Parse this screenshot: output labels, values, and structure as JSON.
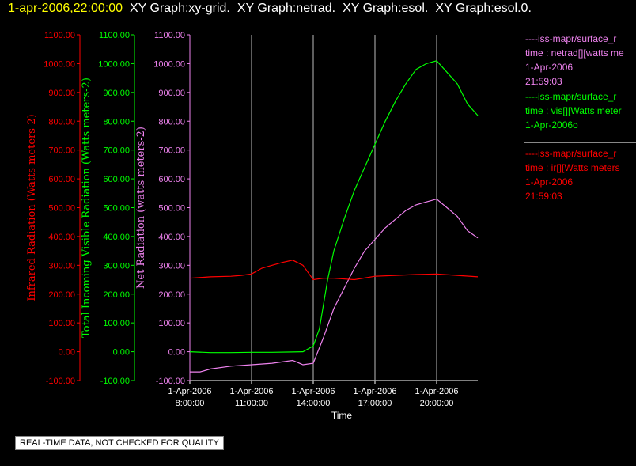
{
  "header": {
    "timestamp": "1-apr-2006,22:00:00",
    "graphs": [
      "XY Graph:xy-grid.",
      "XY Graph:netrad.",
      "XY Graph:esol.",
      "XY Graph:esol.0."
    ]
  },
  "legend": [
    {
      "line1": "----iss-mapr/surface_r",
      "line2": "time : netrad[][watts me",
      "line3": "1-Apr-2006",
      "line4": "21:59:03",
      "color": "#ee82ee"
    },
    {
      "line1": "----iss-mapr/surface_r",
      "line2": "time : vis[][Watts meter",
      "line3": "1-Apr-2006o",
      "line4": "",
      "color": "#00ff00"
    },
    {
      "line1": "----iss-mapr/surface_r",
      "line2": "time : ir[][Watts meters",
      "line3": "1-Apr-2006",
      "line4": "21:59:03",
      "color": "#ff0000"
    }
  ],
  "notice": "REAL-TIME DATA, NOT CHECKED FOR QUALITY",
  "chart_data": {
    "type": "line",
    "xlabel": "Time",
    "x_ticks": [
      {
        "date": "1-Apr-2006",
        "time": "8:00:00",
        "hour": 8
      },
      {
        "date": "1-Apr-2006",
        "time": "11:00:00",
        "hour": 11
      },
      {
        "date": "1-Apr-2006",
        "time": "14:00:00",
        "hour": 14
      },
      {
        "date": "1-Apr-2006",
        "time": "17:00:00",
        "hour": 17
      },
      {
        "date": "1-Apr-2006",
        "time": "20:00:00",
        "hour": 20
      }
    ],
    "xlim": [
      "1-Apr-2006 8:00:00",
      "1-Apr-2006 22:00:00"
    ],
    "vertical_grid_hours": [
      11,
      14,
      17,
      20
    ],
    "ylim": [
      -100,
      1100
    ],
    "y_ticks": [
      "-100.00",
      "0.00",
      "100.00",
      "200.00",
      "300.00",
      "400.00",
      "500.00",
      "600.00",
      "700.00",
      "800.00",
      "900.00",
      "1000.00",
      "1100.00"
    ],
    "axes": [
      {
        "label": "Infrared Radiation (Watts meters-2)",
        "color": "#ff0000"
      },
      {
        "label": "Total Incoming Visible Radiation (Watts meters-2)",
        "color": "#00ff00"
      },
      {
        "label": "Net Radiation (watts meters-2)",
        "color": "#ee82ee"
      }
    ],
    "series": [
      {
        "name": "vis",
        "color": "#00ff00",
        "x": [
          8,
          9,
          10,
          11,
          12,
          13,
          13.5,
          14,
          14.3,
          14.7,
          15,
          15.5,
          16,
          16.5,
          17,
          17.5,
          18,
          18.5,
          19,
          19.5,
          20,
          20.5,
          21,
          21.5,
          22
        ],
        "y": [
          0,
          -3,
          -3,
          -2,
          -2,
          -1,
          0,
          20,
          80,
          250,
          350,
          460,
          560,
          640,
          720,
          800,
          870,
          930,
          980,
          1000,
          1010,
          970,
          930,
          860,
          820
        ]
      },
      {
        "name": "netrad",
        "color": "#ee82ee",
        "x": [
          8,
          8.5,
          9,
          10,
          11,
          12,
          13,
          13.5,
          14,
          14.5,
          15,
          15.5,
          16,
          16.5,
          17,
          17.5,
          18,
          18.5,
          19,
          19.5,
          20,
          20.5,
          21,
          21.5,
          22
        ],
        "y": [
          -70,
          -70,
          -60,
          -50,
          -45,
          -40,
          -30,
          -45,
          -40,
          50,
          150,
          220,
          290,
          350,
          390,
          430,
          460,
          490,
          510,
          520,
          530,
          500,
          470,
          420,
          395
        ]
      },
      {
        "name": "ir",
        "color": "#ff0000",
        "x": [
          8,
          9,
          10,
          10.5,
          11,
          11.5,
          12,
          12.5,
          13,
          13.5,
          13.8,
          14,
          14.5,
          15,
          16,
          17,
          18,
          19,
          20,
          21,
          22
        ],
        "y": [
          255,
          260,
          262,
          265,
          270,
          290,
          300,
          310,
          318,
          300,
          270,
          250,
          255,
          255,
          250,
          262,
          265,
          268,
          270,
          265,
          260
        ]
      }
    ]
  }
}
